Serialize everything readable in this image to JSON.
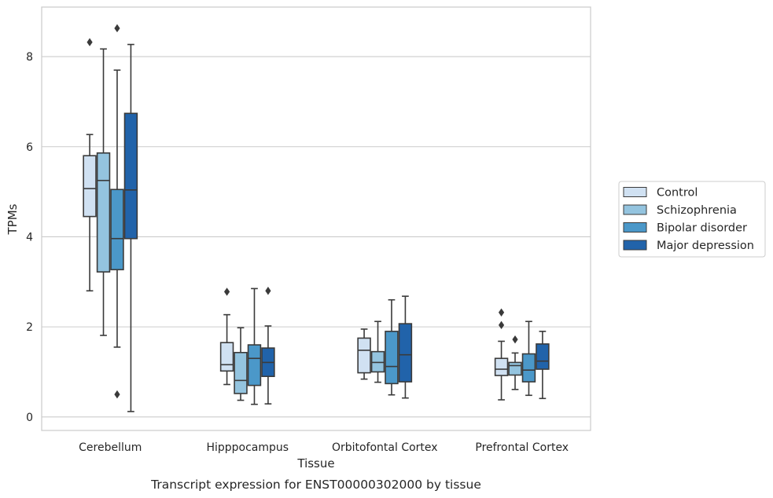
{
  "chart_data": {
    "type": "box",
    "caption": "Transcript expression for ENST00000302000 by tissue",
    "xlabel": "Tissue",
    "ylabel": "TPMs",
    "ylim": [
      -0.3,
      9.1
    ],
    "yticks": [
      0,
      2,
      4,
      6,
      8
    ],
    "grid": true,
    "legend_position": "right",
    "categories": [
      "Cerebellum",
      "Hipppocampus",
      "Orbitofontal Cortex",
      "Prefrontal Cortex"
    ],
    "series": [
      {
        "name": "Control",
        "color": "#d0e1f2",
        "boxes": [
          {
            "whislo": 2.8,
            "q1": 4.45,
            "med": 5.07,
            "q3": 5.8,
            "whishi": 6.27,
            "fliers": [
              8.32
            ]
          },
          {
            "whislo": 0.72,
            "q1": 1.02,
            "med": 1.16,
            "q3": 1.65,
            "whishi": 2.27,
            "fliers": [
              2.78
            ]
          },
          {
            "whislo": 0.84,
            "q1": 0.98,
            "med": 1.48,
            "q3": 1.75,
            "whishi": 1.95,
            "fliers": []
          },
          {
            "whislo": 0.38,
            "q1": 0.92,
            "med": 1.06,
            "q3": 1.3,
            "whishi": 1.68,
            "fliers": [
              2.04,
              2.32
            ]
          }
        ]
      },
      {
        "name": "Schizophrenia",
        "color": "#94c4df",
        "boxes": [
          {
            "whislo": 1.81,
            "q1": 3.22,
            "med": 5.25,
            "q3": 5.86,
            "whishi": 8.17,
            "fliers": []
          },
          {
            "whislo": 0.37,
            "q1": 0.52,
            "med": 0.81,
            "q3": 1.43,
            "whishi": 1.98,
            "fliers": []
          },
          {
            "whislo": 0.77,
            "q1": 1.0,
            "med": 1.21,
            "q3": 1.45,
            "whishi": 2.12,
            "fliers": []
          },
          {
            "whislo": 0.61,
            "q1": 0.93,
            "med": 1.14,
            "q3": 1.21,
            "whishi": 1.42,
            "fliers": [
              1.72
            ]
          }
        ]
      },
      {
        "name": "Bipolar disorder",
        "color": "#4b98c9",
        "boxes": [
          {
            "whislo": 1.55,
            "q1": 3.27,
            "med": 3.96,
            "q3": 5.05,
            "whishi": 7.7,
            "fliers": [
              0.5,
              8.63
            ]
          },
          {
            "whislo": 0.28,
            "q1": 0.7,
            "med": 1.3,
            "q3": 1.6,
            "whishi": 2.85,
            "fliers": []
          },
          {
            "whislo": 0.49,
            "q1": 0.74,
            "med": 1.12,
            "q3": 1.9,
            "whishi": 2.6,
            "fliers": []
          },
          {
            "whislo": 0.48,
            "q1": 0.78,
            "med": 1.04,
            "q3": 1.4,
            "whishi": 2.12,
            "fliers": []
          }
        ]
      },
      {
        "name": "Major depression",
        "color": "#2163aa",
        "boxes": [
          {
            "whislo": 0.12,
            "q1": 3.96,
            "med": 5.04,
            "q3": 6.74,
            "whishi": 8.27,
            "fliers": []
          },
          {
            "whislo": 0.29,
            "q1": 0.9,
            "med": 1.21,
            "q3": 1.53,
            "whishi": 2.02,
            "fliers": [
              2.8
            ]
          },
          {
            "whislo": 0.42,
            "q1": 0.78,
            "med": 1.38,
            "q3": 2.07,
            "whishi": 2.68,
            "fliers": []
          },
          {
            "whislo": 0.41,
            "q1": 1.06,
            "med": 1.24,
            "q3": 1.62,
            "whishi": 1.9,
            "fliers": []
          }
        ]
      }
    ]
  }
}
